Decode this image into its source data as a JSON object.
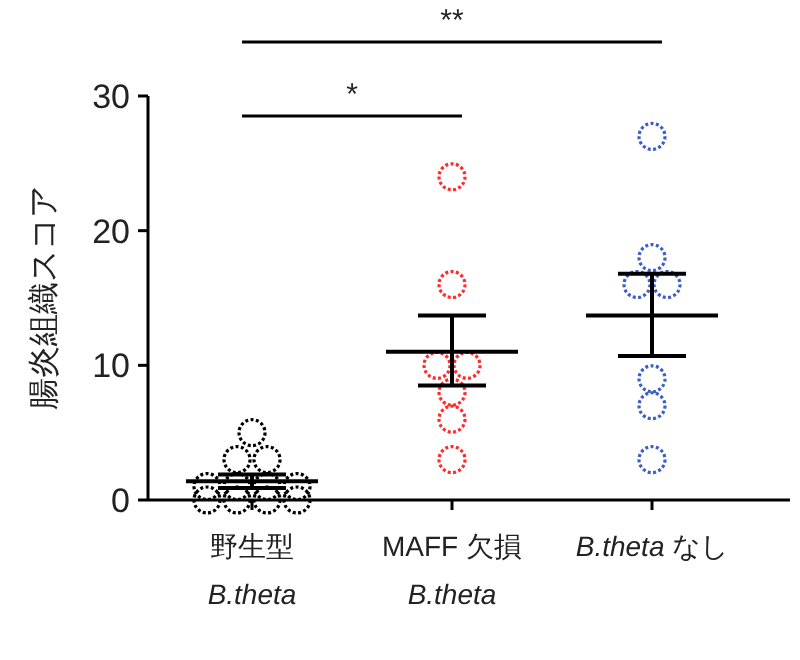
{
  "chart_data": {
    "type": "scatter",
    "ylabel": "腸炎組織スコア",
    "categories": [
      "野生型\nB.theta",
      "MAFF 欠損\nB.theta",
      "B.theta なし"
    ],
    "ylim": [
      0,
      30
    ],
    "yticks": [
      0,
      10,
      20,
      30
    ],
    "grid": false,
    "marker": "circle",
    "series": [
      {
        "color": "#000000",
        "x": [
          "野生型\nB.theta",
          "野生型\nB.theta",
          "野生型\nB.theta",
          "野生型\nB.theta",
          "野生型\nB.theta",
          "野生型\nB.theta",
          "野生型\nB.theta",
          "野生型\nB.theta",
          "野生型\nB.theta",
          "野生型\nB.theta",
          "野生型\nB.theta"
        ],
        "values": [
          5,
          3,
          3,
          1,
          1,
          1,
          1,
          0,
          0,
          0,
          0
        ]
      },
      {
        "color": "#ff2a2a",
        "x": [
          "MAFF 欠損\nB.theta",
          "MAFF 欠損\nB.theta",
          "MAFF 欠損\nB.theta",
          "MAFF 欠損\nB.theta",
          "MAFF 欠損\nB.theta",
          "MAFF 欠損\nB.theta",
          "MAFF 欠損\nB.theta"
        ],
        "values": [
          24,
          16,
          10,
          10,
          8,
          6,
          3
        ]
      },
      {
        "color": "#3a5fc8",
        "x": [
          "B.theta なし",
          "B.theta なし",
          "B.theta なし",
          "B.theta なし",
          "B.theta なし",
          "B.theta なし",
          "B.theta なし"
        ],
        "values": [
          27,
          18,
          16,
          16,
          9,
          7,
          3
        ]
      },
      {
        "type": "box",
        "color": "#000000",
        "boxes": [
          {
            "low": 0.9,
            "q1": 1.4,
            "median": 1.4,
            "q3": 1.4,
            "high": 1.9
          },
          {
            "low": 8.5,
            "q1": 11,
            "median": 11,
            "q3": 11,
            "high": 13.7
          },
          {
            "low": 10.7,
            "q1": 13.7,
            "median": 13.7,
            "q3": 13.7,
            "high": 16.8
          }
        ]
      }
    ],
    "annotations": [
      "*",
      "**"
    ]
  }
}
